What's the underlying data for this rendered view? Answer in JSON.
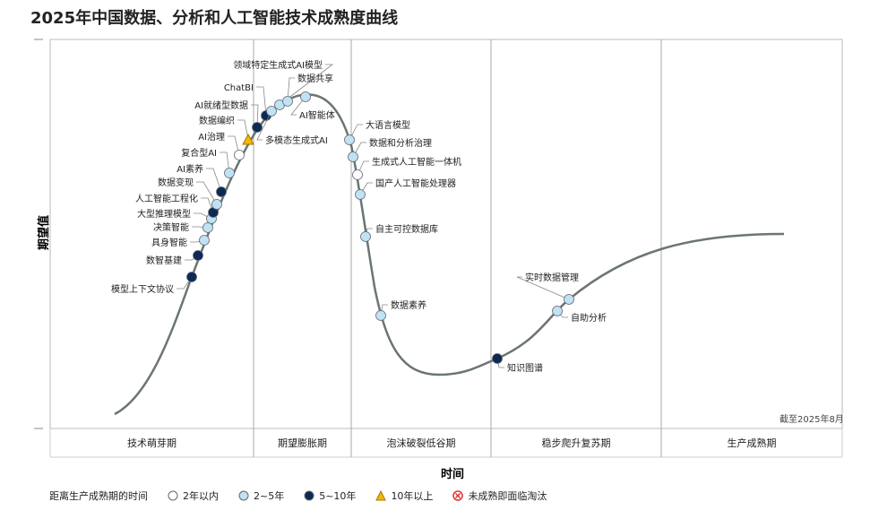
{
  "title": "2025年中国数据、分析和人工智能技术成熟度曲线",
  "y_axis_label": "期望值",
  "x_axis_label": "时间",
  "note": "截至2025年8月",
  "phases": [
    "技术萌芽期",
    "期望膨胀期",
    "泡沫破裂低谷期",
    "稳步爬升复苏期",
    "生产成熟期"
  ],
  "legend": {
    "title": "距离生产成熟期的时间",
    "items": [
      {
        "key": "lt2",
        "label": "2年以内",
        "color": "#ffffff"
      },
      {
        "key": "2to5",
        "label": "2~5年",
        "color": "#bfe3f2"
      },
      {
        "key": "5to10",
        "label": "5~10年",
        "color": "#0b2a55"
      },
      {
        "key": "gt10",
        "label": "10年以上",
        "color": "#f5b800"
      },
      {
        "key": "obsolete",
        "label": "未成熟即面临淘汰",
        "color": "#e03030"
      }
    ]
  },
  "technologies": [
    {
      "name": "模型上下文协议",
      "category": "5to10"
    },
    {
      "name": "数智基建",
      "category": "5to10"
    },
    {
      "name": "具身智能",
      "category": "2to5"
    },
    {
      "name": "决策智能",
      "category": "2to5"
    },
    {
      "name": "大型推理模型",
      "category": "2to5"
    },
    {
      "name": "人工智能工程化",
      "category": "5to10"
    },
    {
      "name": "数据变现",
      "category": "2to5"
    },
    {
      "name": "AI素养",
      "category": "5to10"
    },
    {
      "name": "复合型AI",
      "category": "2to5"
    },
    {
      "name": "AI治理",
      "category": "lt2"
    },
    {
      "name": "数据编织",
      "category": "gt10"
    },
    {
      "name": "AI就绪型数据",
      "category": "5to10"
    },
    {
      "name": "ChatBI",
      "category": "5to10"
    },
    {
      "name": "多模态生成式AI",
      "category": "2to5"
    },
    {
      "name": "领域特定生成式AI模型",
      "category": "2to5"
    },
    {
      "name": "数据共享",
      "category": "2to5"
    },
    {
      "name": "AI智能体",
      "category": "2to5"
    },
    {
      "name": "大语言模型",
      "category": "2to5"
    },
    {
      "name": "数据和分析治理",
      "category": "2to5"
    },
    {
      "name": "生成式人工智能一体机",
      "category": "lt2"
    },
    {
      "name": "国产人工智能处理器",
      "category": "2to5"
    },
    {
      "name": "自主可控数据库",
      "category": "2to5"
    },
    {
      "name": "数据素养",
      "category": "2to5"
    },
    {
      "name": "知识图谱",
      "category": "5to10"
    },
    {
      "name": "自助分析",
      "category": "2to5"
    },
    {
      "name": "实时数据管理",
      "category": "2to5"
    }
  ]
}
